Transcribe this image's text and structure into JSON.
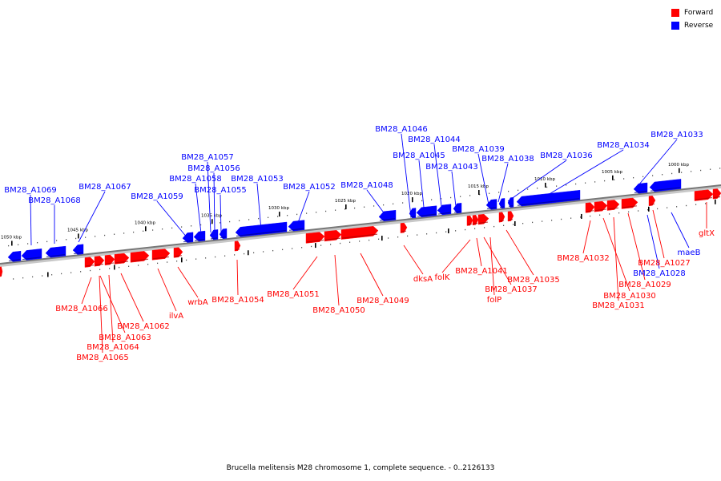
{
  "colors": {
    "forward": "#ff0000",
    "reverse": "#0000ff",
    "backbone": "#888888"
  },
  "legend": [
    {
      "label": "Forward",
      "color": "#ff0000"
    },
    {
      "label": "Reverse",
      "color": "#0000ff"
    }
  ],
  "footer": "Brucella melitensis M28 chromosome 1, complete sequence. - 0..2126133",
  "scale_ticks": [
    "1050 kbp",
    "1045 kbp",
    "1040 kbp",
    "1035 kbp",
    "1030 kbp",
    "1025 kbp",
    "1020 kbp",
    "1015 kbp",
    "1010 kbp",
    "1005 kbp",
    "1000 kbp"
  ],
  "genes": [
    {
      "label": "BM28_A1069",
      "strand": "reverse"
    },
    {
      "label": "BM28_A1068",
      "strand": "reverse"
    },
    {
      "label": "BM28_A1067",
      "strand": "reverse"
    },
    {
      "label": "BM28_A1059",
      "strand": "reverse"
    },
    {
      "label": "BM28_A1057",
      "strand": "reverse"
    },
    {
      "label": "BM28_A1056",
      "strand": "reverse"
    },
    {
      "label": "BM28_A1058",
      "strand": "reverse"
    },
    {
      "label": "BM28_A1055",
      "strand": "reverse"
    },
    {
      "label": "BM28_A1053",
      "strand": "reverse"
    },
    {
      "label": "BM28_A1052",
      "strand": "reverse"
    },
    {
      "label": "BM28_A1048",
      "strand": "reverse"
    },
    {
      "label": "BM28_A1046",
      "strand": "reverse"
    },
    {
      "label": "BM28_A1044",
      "strand": "reverse"
    },
    {
      "label": "BM28_A1045",
      "strand": "reverse"
    },
    {
      "label": "BM28_A1043",
      "strand": "reverse"
    },
    {
      "label": "BM28_A1039",
      "strand": "reverse"
    },
    {
      "label": "BM28_A1038",
      "strand": "reverse"
    },
    {
      "label": "BM28_A1036",
      "strand": "reverse"
    },
    {
      "label": "BM28_A1034",
      "strand": "reverse"
    },
    {
      "label": "BM28_A1033",
      "strand": "reverse"
    },
    {
      "label": "maeB",
      "strand": "reverse"
    },
    {
      "label": "BM28_A1028",
      "strand": "reverse"
    },
    {
      "label": "BM28_A1066",
      "strand": "forward"
    },
    {
      "label": "BM28_A1063",
      "strand": "forward"
    },
    {
      "label": "BM28_A1064",
      "strand": "forward"
    },
    {
      "label": "BM28_A1065",
      "strand": "forward"
    },
    {
      "label": "BM28_A1062",
      "strand": "forward"
    },
    {
      "label": "ilvA",
      "strand": "forward"
    },
    {
      "label": "wrbA",
      "strand": "forward"
    },
    {
      "label": "BM28_A1054",
      "strand": "forward"
    },
    {
      "label": "BM28_A1051",
      "strand": "forward"
    },
    {
      "label": "BM28_A1050",
      "strand": "forward"
    },
    {
      "label": "BM28_A1049",
      "strand": "forward"
    },
    {
      "label": "dksA",
      "strand": "forward"
    },
    {
      "label": "folK",
      "strand": "forward"
    },
    {
      "label": "BM28_A1041",
      "strand": "forward"
    },
    {
      "label": "BM28_A1037",
      "strand": "forward"
    },
    {
      "label": "folP",
      "strand": "forward"
    },
    {
      "label": "BM28_A1035",
      "strand": "forward"
    },
    {
      "label": "BM28_A1032",
      "strand": "forward"
    },
    {
      "label": "BM28_A1030",
      "strand": "forward"
    },
    {
      "label": "BM28_A1031",
      "strand": "forward"
    },
    {
      "label": "BM28_A1029",
      "strand": "forward"
    },
    {
      "label": "BM28_A1027",
      "strand": "forward"
    },
    {
      "label": "gltX",
      "strand": "forward"
    }
  ]
}
